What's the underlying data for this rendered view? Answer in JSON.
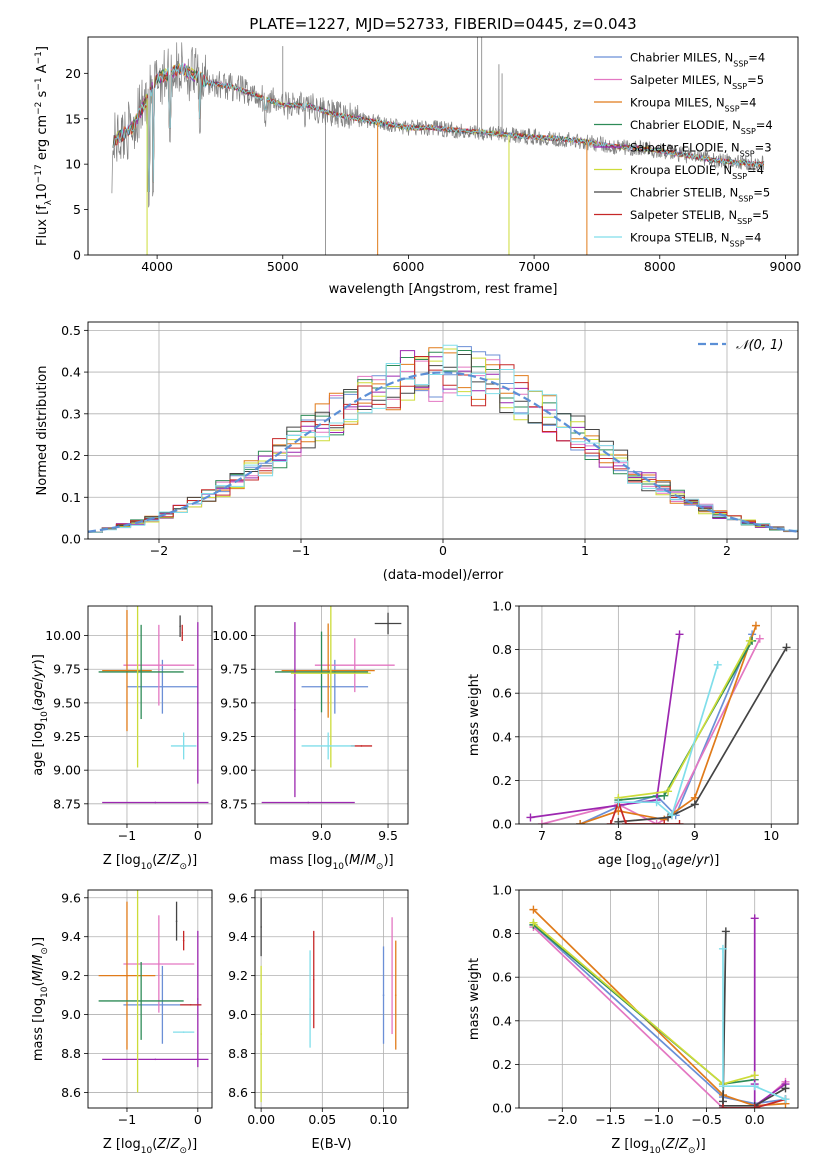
{
  "figure": {
    "title": "PLATE=1227, MJD=52733, FIBERID=0445, z=0.043"
  },
  "series": [
    {
      "name": "Chabrier MILES, N_SSP=4",
      "label_main": "Chabrier MILES, N",
      "label_sub": "SSP",
      "label_tail": "=4",
      "color": "#6b8fd6"
    },
    {
      "name": "Salpeter MILES, N_SSP=5",
      "label_main": "Salpeter MILES, N",
      "label_sub": "SSP",
      "label_tail": "=5",
      "color": "#e377c2"
    },
    {
      "name": "Kroupa MILES, N_SSP=4",
      "label_main": "Kroupa MILES, N",
      "label_sub": "SSP",
      "label_tail": "=4",
      "color": "#e07b1a"
    },
    {
      "name": "Chabrier ELODIE, N_SSP=4",
      "label_main": "Chabrier ELODIE, N",
      "label_sub": "SSP",
      "label_tail": "=4",
      "color": "#2e8b57"
    },
    {
      "name": "Salpeter ELODIE, N_SSP=3",
      "label_main": "Salpeter ELODIE, N",
      "label_sub": "SSP",
      "label_tail": "=3",
      "color": "#9c27b0"
    },
    {
      "name": "Kroupa ELODIE, N_SSP=4",
      "label_main": "Kroupa ELODIE, N",
      "label_sub": "SSP",
      "label_tail": "=4",
      "color": "#cddc39"
    },
    {
      "name": "Chabrier STELIB, N_SSP=5",
      "label_main": "Chabrier STELIB, N",
      "label_sub": "SSP",
      "label_tail": "=5",
      "color": "#444444"
    },
    {
      "name": "Salpeter STELIB, N_SSP=5",
      "label_main": "Salpeter STELIB, N",
      "label_sub": "SSP",
      "label_tail": "=5",
      "color": "#c62828"
    },
    {
      "name": "Kroupa STELIB, N_SSP=4",
      "label_main": "Kroupa STELIB, N",
      "label_sub": "SSP",
      "label_tail": "=4",
      "color": "#80deea"
    }
  ],
  "chart_data": [
    {
      "id": "spectrum",
      "type": "line",
      "xlabel": "wavelength [Angstrom, rest frame]",
      "ylabel": "Flux [f_λ 10^-17 erg cm^-2 s^-1 A^-1]",
      "ylabel_parts": [
        "Flux [f",
        "λ",
        "10",
        "−17",
        " erg cm",
        "−2",
        " s",
        "−1",
        " A",
        "−1",
        "]"
      ],
      "xlim": [
        3450,
        9100
      ],
      "ylim": [
        0,
        24
      ],
      "xticks": [
        4000,
        5000,
        6000,
        7000,
        8000,
        9000
      ],
      "yticks": [
        0,
        5,
        10,
        15,
        20
      ],
      "observed_color": "#808080",
      "continuum": [
        [
          3650,
          12.5
        ],
        [
          3800,
          14
        ],
        [
          3950,
          18
        ],
        [
          4000,
          19.5
        ],
        [
          4200,
          20.5
        ],
        [
          4400,
          19
        ],
        [
          4600,
          18.5
        ],
        [
          4800,
          17.5
        ],
        [
          5000,
          16.5
        ],
        [
          5200,
          16.5
        ],
        [
          5400,
          15.5
        ],
        [
          5600,
          15
        ],
        [
          5800,
          14.5
        ],
        [
          6000,
          14
        ],
        [
          6200,
          14
        ],
        [
          6400,
          13.7
        ],
        [
          6600,
          13.5
        ],
        [
          6800,
          13.2
        ],
        [
          7000,
          13
        ],
        [
          7200,
          12.8
        ],
        [
          7400,
          12.5
        ],
        [
          7600,
          12
        ],
        [
          7800,
          11.8
        ],
        [
          8000,
          11.5
        ],
        [
          8200,
          11
        ],
        [
          8400,
          10.5
        ],
        [
          8600,
          10.2
        ],
        [
          8800,
          10
        ]
      ],
      "absorption_dips": [
        [
          3934,
          5
        ],
        [
          3969,
          6
        ],
        [
          4102,
          12
        ],
        [
          4340,
          13
        ],
        [
          4861,
          14
        ],
        [
          5175,
          14
        ]
      ],
      "model_dropouts": [
        [
          3920,
          0,
          "#cddc39"
        ],
        [
          5755,
          0,
          "#e07b1a"
        ],
        [
          6800,
          0,
          "#cddc39"
        ],
        [
          7420,
          0,
          "#e07b1a"
        ]
      ],
      "observed_spikes": [
        [
          5340,
          0
        ],
        [
          6550,
          24
        ],
        [
          6583,
          24
        ],
        [
          6720,
          21
        ],
        [
          6745,
          20
        ],
        [
          5000,
          23
        ]
      ]
    },
    {
      "id": "residual-histogram",
      "type": "histogram",
      "xlabel": "(data-model)/error",
      "ylabel": "Normed distribution",
      "xlim": [
        -2.5,
        2.5
      ],
      "ylim": [
        0,
        0.52
      ],
      "xticks": [
        -2,
        -1,
        0,
        1,
        2
      ],
      "yticks": [
        0,
        0.1,
        0.2,
        0.3,
        0.4,
        0.5
      ],
      "legend": "N(0,1)",
      "reference_color": "#5b8fd6",
      "bin_width": 0.1,
      "bin_start": -2.5
    },
    {
      "id": "age-vs-Z",
      "type": "errorbar",
      "xlabel": "Z [log10(Z/Z_sun)]",
      "ylabel": "age [log10(age/yr)]",
      "xlim": [
        -1.55,
        0.2
      ],
      "ylim": [
        8.6,
        10.22
      ],
      "xticks": [
        -1,
        0
      ],
      "yticks": [
        8.75,
        9.0,
        9.25,
        9.5,
        9.75,
        10.0
      ],
      "points": [
        {
          "s": 0,
          "x": -0.5,
          "y": 9.62,
          "xerr": 0.5,
          "yerr": 0.2
        },
        {
          "s": 1,
          "x": -0.55,
          "y": 9.78,
          "xerr": 0.5,
          "yerr": 0.3
        },
        {
          "s": 2,
          "x": -1.0,
          "y": 9.74,
          "xerr": 0.35,
          "yerr": 0.45
        },
        {
          "s": 3,
          "x": -0.8,
          "y": 9.73,
          "xerr": 0.6,
          "yerr": 0.35
        },
        {
          "s": 4,
          "x": -0.6,
          "y": 8.76,
          "xerr": 0.75,
          "yerr": 0.0
        },
        {
          "s": 4,
          "x": 0.0,
          "y": 9.5,
          "xerr": 0.0,
          "yerr": 0.6
        },
        {
          "s": 5,
          "x": -0.85,
          "y": 9.72,
          "xerr": 0.0,
          "yerr": 0.7
        },
        {
          "s": 6,
          "x": -0.25,
          "y": 10.07,
          "xerr": 0.0,
          "yerr": 0.08
        },
        {
          "s": 7,
          "x": -0.22,
          "y": 10.02,
          "xerr": 0.0,
          "yerr": 0.06
        },
        {
          "s": 8,
          "x": -0.2,
          "y": 9.18,
          "xerr": 0.18,
          "yerr": 0.1
        }
      ]
    },
    {
      "id": "age-vs-mass",
      "type": "errorbar",
      "xlabel": "mass [log10(M/M_sun)]",
      "ylabel": "",
      "xlim": [
        8.5,
        9.65
      ],
      "ylim": [
        8.6,
        10.22
      ],
      "xticks": [
        9.0,
        9.5
      ],
      "yticks": [
        8.75,
        9.0,
        9.25,
        9.5,
        9.75,
        10.0
      ],
      "points": [
        {
          "s": 0,
          "x": 9.1,
          "y": 9.62,
          "xerr": 0.25,
          "yerr": 0.2
        },
        {
          "s": 1,
          "x": 9.25,
          "y": 9.78,
          "xerr": 0.3,
          "yerr": 0.2
        },
        {
          "s": 2,
          "x": 9.05,
          "y": 9.74,
          "xerr": 0.35,
          "yerr": 0.35
        },
        {
          "s": 3,
          "x": 9.0,
          "y": 9.73,
          "xerr": 0.35,
          "yerr": 0.3
        },
        {
          "s": 4,
          "x": 8.9,
          "y": 8.76,
          "xerr": 0.35,
          "yerr": 0.0
        },
        {
          "s": 4,
          "x": 8.8,
          "y": 9.45,
          "xerr": 0.0,
          "yerr": 0.65
        },
        {
          "s": 5,
          "x": 9.07,
          "y": 9.72,
          "xerr": 0.3,
          "yerr": 0.7
        },
        {
          "s": 6,
          "x": 9.5,
          "y": 10.09,
          "xerr": 0.1,
          "yerr": 0.08
        },
        {
          "s": 7,
          "x": 9.3,
          "y": 9.18,
          "xerr": 0.08,
          "yerr": 0.0
        },
        {
          "s": 8,
          "x": 9.05,
          "y": 9.18,
          "xerr": 0.2,
          "yerr": 0.1
        }
      ]
    },
    {
      "id": "massweight-vs-age",
      "type": "line",
      "xlabel": "age [log10(age/yr)]",
      "ylabel": "mass weight",
      "xlim": [
        6.7,
        10.35
      ],
      "ylim": [
        0,
        1.0
      ],
      "xticks": [
        7,
        8,
        9,
        10
      ],
      "yticks": [
        0.0,
        0.2,
        0.4,
        0.6,
        0.8,
        1.0
      ],
      "lines": [
        {
          "s": 0,
          "x": [
            7.5,
            8.0,
            8.5,
            8.75,
            9.75
          ],
          "y": [
            0.0,
            0.08,
            0.13,
            0.04,
            0.87
          ]
        },
        {
          "s": 1,
          "x": [
            7.0,
            8.0,
            8.5,
            8.7,
            9.85
          ],
          "y": [
            0.0,
            0.09,
            0.0,
            0.04,
            0.85
          ]
        },
        {
          "s": 2,
          "x": [
            7.5,
            8.0,
            8.6,
            9.0,
            9.8
          ],
          "y": [
            0.0,
            0.06,
            0.02,
            0.12,
            0.91
          ]
        },
        {
          "s": 3,
          "x": [
            8.0,
            8.6,
            9.75
          ],
          "y": [
            0.11,
            0.13,
            0.84
          ]
        },
        {
          "s": 4,
          "x": [
            6.85,
            8.5,
            8.8
          ],
          "y": [
            0.03,
            0.11,
            0.87
          ]
        },
        {
          "s": 5,
          "x": [
            8.0,
            8.65,
            9.72
          ],
          "y": [
            0.12,
            0.15,
            0.84
          ]
        },
        {
          "s": 6,
          "x": [
            8.0,
            8.65,
            9.0,
            10.2
          ],
          "y": [
            0.01,
            0.03,
            0.09,
            0.81
          ]
        },
        {
          "s": 7,
          "x": [
            7.9,
            8.0,
            8.1,
            8.6,
            8.8
          ],
          "y": [
            0.0,
            0.1,
            0.0,
            0.0,
            0.0
          ]
        },
        {
          "s": 8,
          "x": [
            8.0,
            8.5,
            8.7,
            9.3
          ],
          "y": [
            0.1,
            0.1,
            0.04,
            0.73
          ]
        }
      ]
    },
    {
      "id": "mass-vs-Z",
      "type": "errorbar",
      "xlabel": "Z [log10(Z/Z_sun)]",
      "ylabel": "mass [log10(M/M_sun)]",
      "xlim": [
        -1.55,
        0.2
      ],
      "ylim": [
        8.52,
        9.64
      ],
      "xticks": [
        -1,
        0
      ],
      "yticks": [
        8.6,
        8.8,
        9.0,
        9.2,
        9.4,
        9.6
      ],
      "points": [
        {
          "s": 0,
          "x": -0.5,
          "y": 9.05,
          "xerr": 0.55,
          "yerr": 0.2
        },
        {
          "s": 1,
          "x": -0.55,
          "y": 9.26,
          "xerr": 0.5,
          "yerr": 0.25
        },
        {
          "s": 2,
          "x": -1.0,
          "y": 9.2,
          "xerr": 0.4,
          "yerr": 0.38
        },
        {
          "s": 3,
          "x": -0.8,
          "y": 9.07,
          "xerr": 0.6,
          "yerr": 0.2
        },
        {
          "s": 4,
          "x": -0.6,
          "y": 8.77,
          "xerr": 0.75,
          "yerr": 0.0
        },
        {
          "s": 4,
          "x": 0.0,
          "y": 9.08,
          "xerr": 0.0,
          "yerr": 0.35
        },
        {
          "s": 5,
          "x": -0.85,
          "y": 9.2,
          "xerr": 0.0,
          "yerr": 0.6
        },
        {
          "s": 6,
          "x": -0.3,
          "y": 9.48,
          "xerr": 0.0,
          "yerr": 0.1
        },
        {
          "s": 7,
          "x": -0.2,
          "y": 9.38,
          "xerr": 0.0,
          "yerr": 0.05
        },
        {
          "s": 8,
          "x": -0.2,
          "y": 8.91,
          "xerr": 0.15,
          "yerr": 0.0
        },
        {
          "s": 7,
          "x": -0.1,
          "y": 9.05,
          "xerr": 0.15,
          "yerr": 0.0
        }
      ]
    },
    {
      "id": "mass-vs-EBV",
      "type": "errorbar",
      "xlabel": "E(B-V)",
      "ylabel": "",
      "xlim": [
        -0.005,
        0.12
      ],
      "ylim": [
        8.52,
        9.64
      ],
      "xticks": [
        0.0,
        0.05,
        0.1
      ],
      "yticks": [
        8.6,
        8.8,
        9.0,
        9.2,
        9.4,
        9.6
      ],
      "points": [
        {
          "s": 6,
          "x": 0.0,
          "y": 9.45,
          "xerr": 0.0,
          "yerr": 0.15
        },
        {
          "s": 5,
          "x": 0.0,
          "y": 8.9,
          "xerr": 0.0,
          "yerr": 0.35
        },
        {
          "s": 8,
          "x": 0.04,
          "y": 9.08,
          "xerr": 0.0,
          "yerr": 0.25
        },
        {
          "s": 7,
          "x": 0.043,
          "y": 9.18,
          "xerr": 0.0,
          "yerr": 0.25
        },
        {
          "s": 0,
          "x": 0.1,
          "y": 9.1,
          "xerr": 0.0,
          "yerr": 0.25
        },
        {
          "s": 1,
          "x": 0.107,
          "y": 9.2,
          "xerr": 0.0,
          "yerr": 0.3
        },
        {
          "s": 2,
          "x": 0.11,
          "y": 9.1,
          "xerr": 0.0,
          "yerr": 0.28
        }
      ]
    },
    {
      "id": "massweight-vs-Z",
      "type": "line",
      "xlabel": "Z [log10(Z/Z_sun)]",
      "ylabel": "mass weight",
      "xlim": [
        -2.45,
        0.45
      ],
      "ylim": [
        0,
        1.0
      ],
      "xticks": [
        -2.0,
        -1.5,
        -1.0,
        -0.5,
        0.0
      ],
      "yticks": [
        0.0,
        0.2,
        0.4,
        0.6,
        0.8,
        1.0
      ],
      "lines": [
        {
          "s": 0,
          "x": [
            -2.3,
            -0.33,
            0.0,
            0.32
          ],
          "y": [
            0.84,
            0.05,
            0.02,
            0.04
          ]
        },
        {
          "s": 1,
          "x": [
            -2.3,
            -0.33,
            0.0,
            0.32
          ],
          "y": [
            0.83,
            0.0,
            0.0,
            0.12
          ]
        },
        {
          "s": 2,
          "x": [
            -2.3,
            -0.33,
            0.0,
            0.32
          ],
          "y": [
            0.91,
            0.06,
            0.01,
            0.02
          ]
        },
        {
          "s": 3,
          "x": [
            -2.3,
            -0.33,
            0.0
          ],
          "y": [
            0.84,
            0.11,
            0.13
          ]
        },
        {
          "s": 4,
          "x": [
            0.0,
            0.0,
            0.0,
            0.32
          ],
          "y": [
            0.87,
            0.11,
            0.01,
            0.11
          ]
        },
        {
          "s": 5,
          "x": [
            -2.3,
            -0.33,
            0.0
          ],
          "y": [
            0.85,
            0.11,
            0.15
          ]
        },
        {
          "s": 6,
          "x": [
            -0.33,
            -0.3,
            -0.33,
            0.0,
            0.32
          ],
          "y": [
            0.03,
            0.81,
            0.01,
            0.01,
            0.09
          ]
        },
        {
          "s": 7,
          "x": [
            -0.33,
            0.0,
            0.32
          ],
          "y": [
            0.0,
            0.0,
            0.04
          ]
        },
        {
          "s": 8,
          "x": [
            -0.33,
            -0.33,
            0.0,
            0.32
          ],
          "y": [
            0.73,
            0.1,
            0.1,
            0.04
          ]
        }
      ]
    }
  ]
}
